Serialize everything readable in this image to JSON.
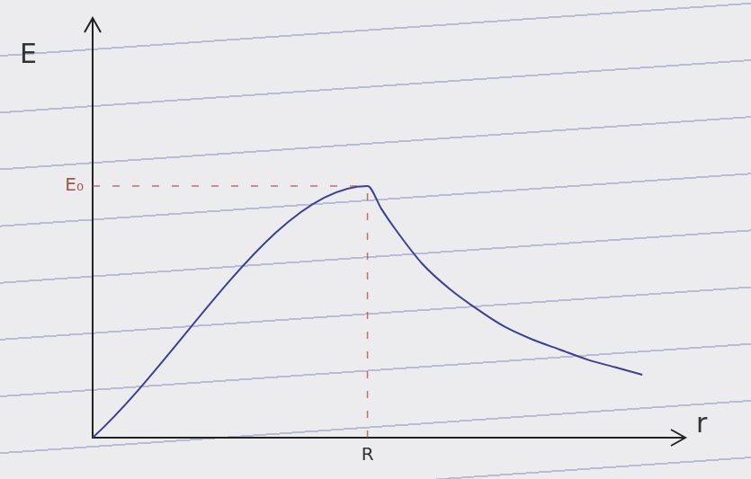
{
  "chart_data": {
    "type": "line",
    "x_label": "r",
    "y_label": "E",
    "x": [
      0,
      1,
      1.05,
      1.1,
      1.2,
      1.3,
      1.4,
      1.5,
      1.6,
      1.7,
      1.8,
      1.9,
      2.0
    ],
    "values": [
      0,
      1,
      0.91,
      0.83,
      0.69,
      0.59,
      0.51,
      0.44,
      0.39,
      0.35,
      0.31,
      0.28,
      0.25
    ],
    "color": "#3b3f98",
    "marker": "none",
    "line_style": "solid",
    "grid": false,
    "xlim": [
      0,
      2.15
    ],
    "ylim": [
      0,
      1.66
    ],
    "xticks": [
      {
        "value": 1,
        "label": "R"
      }
    ],
    "yticks": [
      {
        "value": 1,
        "label": "E₀"
      }
    ]
  }
}
